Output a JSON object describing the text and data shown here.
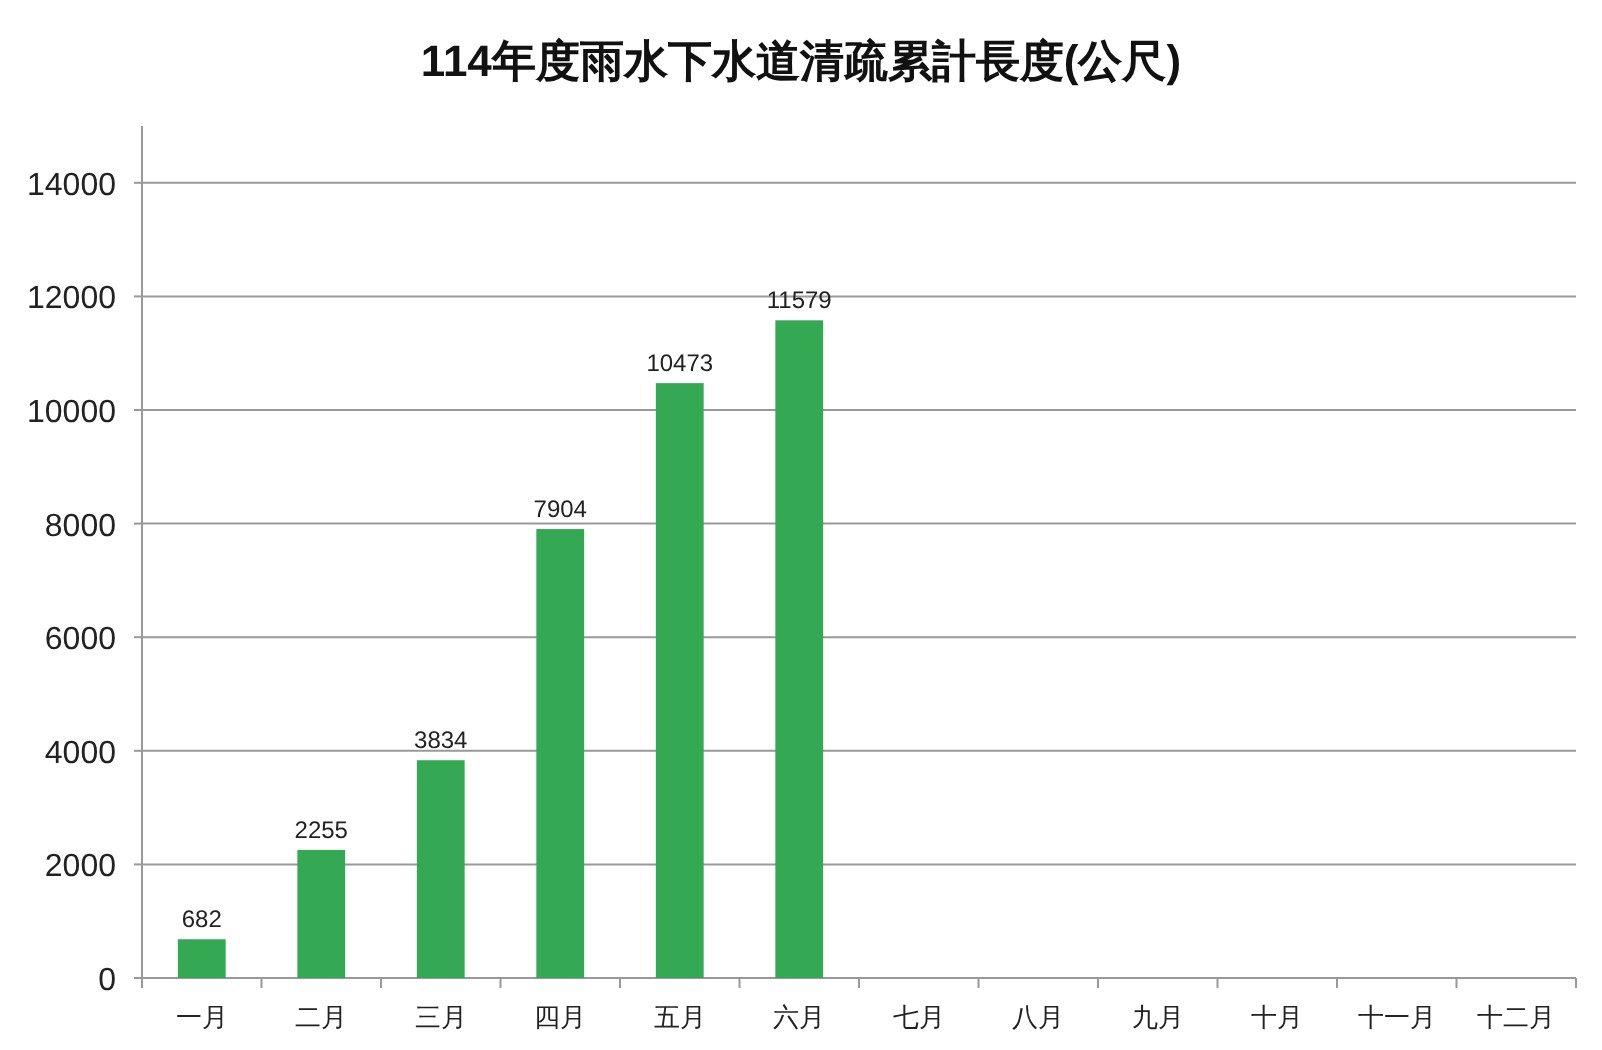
{
  "chart_data": {
    "type": "bar",
    "title": "114年度雨水下水道清疏累計長度(公尺)",
    "categories": [
      "一月",
      "二月",
      "三月",
      "四月",
      "五月",
      "六月",
      "七月",
      "八月",
      "九月",
      "十月",
      "十一月",
      "十二月"
    ],
    "values": [
      682,
      2255,
      3834,
      7904,
      10473,
      11579,
      null,
      null,
      null,
      null,
      null,
      null
    ],
    "color": "#34a853",
    "ylim": [
      0,
      15000
    ],
    "yticks": [
      0,
      2000,
      4000,
      6000,
      8000,
      10000,
      12000,
      14000
    ],
    "grid": "y",
    "data_labels": true
  }
}
